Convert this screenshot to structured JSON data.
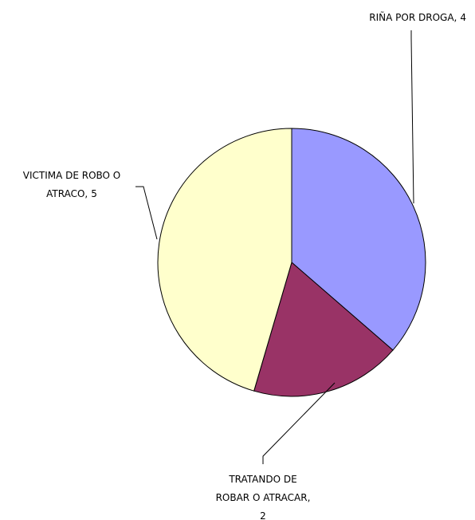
{
  "chart_data": {
    "type": "pie",
    "categories": [
      "RIÑA POR DROGA",
      "TRATANDO DE ROBAR O ATRACAR",
      "VICTIMA DE ROBO O ATRACO"
    ],
    "values": [
      4,
      2,
      5
    ],
    "colors": [
      "#9999ff",
      "#993366",
      "#ffffcc"
    ]
  }
}
